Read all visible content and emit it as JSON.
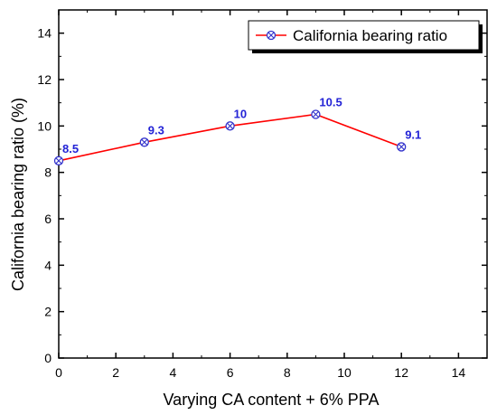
{
  "chart_data": {
    "type": "line",
    "xlabel": "Varying CA content + 6% PPA",
    "ylabel": "California bearing ratio (%)",
    "xlim": [
      0,
      15
    ],
    "ylim": [
      0,
      15
    ],
    "xticks": [
      0,
      2,
      4,
      6,
      8,
      10,
      12,
      14
    ],
    "yticks": [
      0,
      2,
      4,
      6,
      8,
      10,
      12,
      14
    ],
    "grid": false,
    "legend_position": "top-right",
    "series": [
      {
        "name": "California bearing ratio",
        "color": "#ff0000",
        "marker_color": "#3333cc",
        "marker": "circle-x",
        "x": [
          0,
          3,
          6,
          9,
          12
        ],
        "y": [
          8.5,
          9.3,
          10,
          10.5,
          9.1
        ],
        "labels": [
          "8.5",
          "9.3",
          "10",
          "10.5",
          "9.1"
        ]
      }
    ],
    "label_color": "#2323d6"
  }
}
